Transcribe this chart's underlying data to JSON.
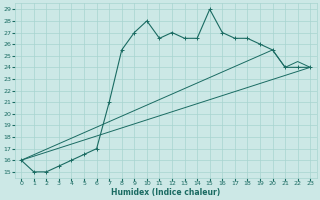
{
  "xlabel": "Humidex (Indice chaleur)",
  "bg_color": "#cce8e6",
  "grid_color": "#a8d4d0",
  "line_color": "#1a6b62",
  "xlim": [
    -0.5,
    23.5
  ],
  "ylim": [
    14.5,
    29.5
  ],
  "xticks": [
    0,
    1,
    2,
    3,
    4,
    5,
    6,
    7,
    8,
    9,
    10,
    11,
    12,
    13,
    14,
    15,
    16,
    17,
    18,
    19,
    20,
    21,
    22,
    23
  ],
  "yticks": [
    15,
    16,
    17,
    18,
    19,
    20,
    21,
    22,
    23,
    24,
    25,
    26,
    27,
    28,
    29
  ],
  "line1_x": [
    0,
    1,
    2,
    3,
    4,
    5,
    6,
    7,
    8,
    9,
    10,
    11,
    12,
    13,
    14,
    15,
    16,
    17,
    18,
    19,
    20,
    21,
    22,
    23
  ],
  "line1_y": [
    16,
    15,
    15,
    15.5,
    16,
    16.5,
    17,
    21,
    25.5,
    27,
    28,
    26.5,
    27,
    26.5,
    26.5,
    29,
    27,
    26.5,
    26.5,
    26,
    25.5,
    24,
    24,
    24
  ],
  "line2_x": [
    0,
    23
  ],
  "line2_y": [
    16,
    24
  ],
  "line3_x": [
    0,
    20,
    21,
    22,
    23
  ],
  "line3_y": [
    16,
    25.5,
    24,
    24.5,
    24
  ]
}
